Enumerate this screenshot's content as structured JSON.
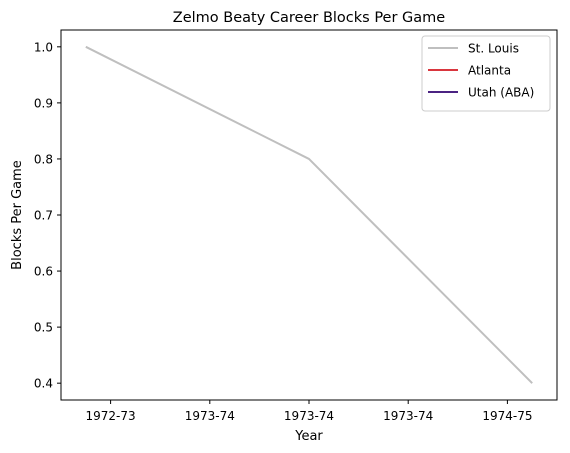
{
  "chart_data": {
    "type": "line",
    "title": "Zelmo Beaty Career Blocks Per Game",
    "xlabel": "Year",
    "ylabel": "Blocks Per Game",
    "x_tick_labels": [
      "1972-73",
      "1973-74",
      "1973-74",
      "1973-74",
      "1974-75"
    ],
    "xlim": [
      -0.5,
      4.5
    ],
    "ylim": [
      0.37,
      1.03
    ],
    "y_ticks": [
      0.4,
      0.5,
      0.6,
      0.7,
      0.8,
      0.9,
      1.0
    ],
    "y_tick_labels": [
      "0.4",
      "0.5",
      "0.6",
      "0.7",
      "0.8",
      "0.9",
      "1.0"
    ],
    "grid": false,
    "legend_position": "top-right",
    "series": [
      {
        "name": "St. Louis",
        "color": "#bfbfbf",
        "points": [
          {
            "x": -0.25,
            "y": 1.0
          },
          {
            "x": 2.0,
            "y": 0.8
          },
          {
            "x": 4.25,
            "y": 0.4
          }
        ]
      },
      {
        "name": "Atlanta",
        "color": "#d9363e",
        "points": []
      },
      {
        "name": "Utah (ABA)",
        "color": "#4b2382",
        "points": []
      }
    ]
  }
}
